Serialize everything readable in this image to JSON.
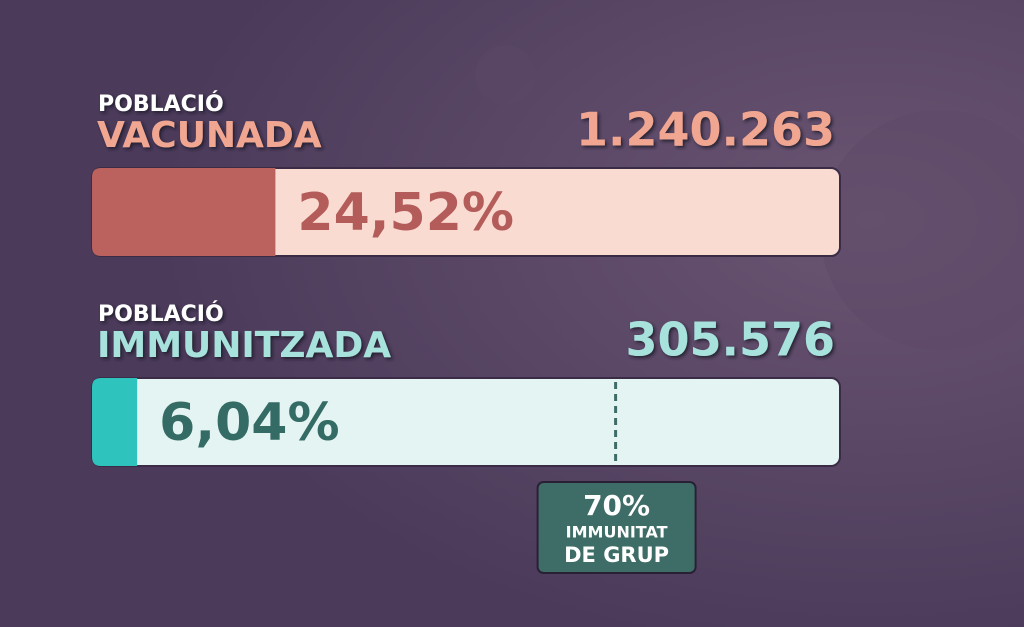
{
  "chart_data": {
    "type": "progress",
    "xlim": [
      0,
      100
    ],
    "bars": [
      {
        "name_top": "POBLACIÓ",
        "name": "VACUNADA",
        "count": {
          "value": 1240263,
          "label": "1.240.263"
        },
        "value": 24.52,
        "value_label": "24,52%",
        "color": "#bb615e",
        "track_color": "#f9dbd1",
        "label_color": "#f1a692",
        "value_text_color": "#b45c59"
      },
      {
        "name_top": "POBLACIÓ",
        "name": "IMMUNITZADA",
        "count": {
          "value": 305576,
          "label": "305.576"
        },
        "value": 6.04,
        "value_label": "6,04%",
        "color": "#2ec3bc",
        "track_color": "#e4f4f2",
        "label_color": "#a8e2dd",
        "value_text_color": "#346b64"
      }
    ],
    "threshold": {
      "bar": 1,
      "value": 70,
      "label": "70%",
      "text": [
        "IMMUNITAT",
        "DE GRUP"
      ],
      "color": "#3e6c66"
    }
  }
}
